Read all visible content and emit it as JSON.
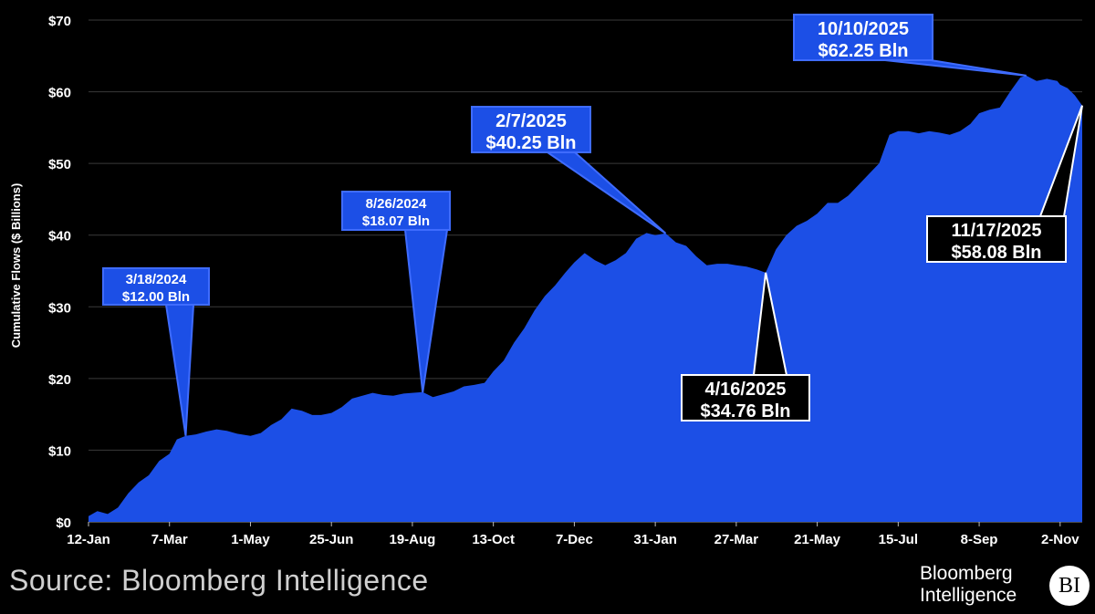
{
  "source": "Source: Bloomberg Intelligence",
  "logo": {
    "line1": "Bloomberg",
    "line2": "Intelligence",
    "badge": "BI"
  },
  "colors": {
    "area": "#1c4fe6",
    "background": "#000000",
    "grid": "#3a3a3a"
  },
  "chart_data": {
    "type": "area",
    "xlabel": "",
    "ylabel": "Cumulative Flows ($ Billions)",
    "ylim": [
      0,
      70
    ],
    "yticks": [
      0,
      10,
      20,
      30,
      40,
      50,
      60,
      70
    ],
    "ytick_labels": [
      "$0",
      "$10",
      "$20",
      "$30",
      "$40",
      "$50",
      "$60",
      "$70"
    ],
    "xlim": [
      "2024-01-12",
      "2025-11-17"
    ],
    "xticks": [
      "2024-01-12",
      "2024-03-07",
      "2024-05-01",
      "2024-06-25",
      "2024-08-19",
      "2024-10-13",
      "2024-12-07",
      "2025-01-31",
      "2025-03-27",
      "2025-05-21",
      "2025-07-15",
      "2025-09-08",
      "2025-11-02"
    ],
    "xtick_labels": [
      "12-Jan",
      "7-Mar",
      "1-May",
      "25-Jun",
      "19-Aug",
      "13-Oct",
      "7-Dec",
      "31-Jan",
      "27-Mar",
      "21-May",
      "15-Jul",
      "8-Sep",
      "2-Nov"
    ],
    "grid": true,
    "series": [
      {
        "x": [
          "2024-01-12",
          "2024-01-18",
          "2024-01-25",
          "2024-02-01",
          "2024-02-08",
          "2024-02-15",
          "2024-02-22",
          "2024-02-29",
          "2024-03-07",
          "2024-03-12",
          "2024-03-18",
          "2024-03-25",
          "2024-04-01",
          "2024-04-08",
          "2024-04-15",
          "2024-04-22",
          "2024-05-01",
          "2024-05-08",
          "2024-05-15",
          "2024-05-22",
          "2024-05-29",
          "2024-06-05",
          "2024-06-12",
          "2024-06-18",
          "2024-06-25",
          "2024-07-02",
          "2024-07-09",
          "2024-07-16",
          "2024-07-23",
          "2024-07-30",
          "2024-08-06",
          "2024-08-13",
          "2024-08-19",
          "2024-08-26",
          "2024-09-02",
          "2024-09-09",
          "2024-09-16",
          "2024-09-23",
          "2024-09-30",
          "2024-10-07",
          "2024-10-13",
          "2024-10-20",
          "2024-10-27",
          "2024-11-03",
          "2024-11-10",
          "2024-11-17",
          "2024-11-24",
          "2024-12-01",
          "2024-12-07",
          "2024-12-14",
          "2024-12-21",
          "2024-12-28",
          "2025-01-04",
          "2025-01-11",
          "2025-01-18",
          "2025-01-25",
          "2025-01-31",
          "2025-02-07",
          "2025-02-14",
          "2025-02-21",
          "2025-02-28",
          "2025-03-07",
          "2025-03-14",
          "2025-03-21",
          "2025-03-27",
          "2025-04-03",
          "2025-04-10",
          "2025-04-16",
          "2025-04-23",
          "2025-04-30",
          "2025-05-07",
          "2025-05-14",
          "2025-05-21",
          "2025-05-28",
          "2025-06-04",
          "2025-06-11",
          "2025-06-18",
          "2025-06-25",
          "2025-07-02",
          "2025-07-09",
          "2025-07-15",
          "2025-07-22",
          "2025-07-29",
          "2025-08-05",
          "2025-08-12",
          "2025-08-19",
          "2025-08-26",
          "2025-09-02",
          "2025-09-08",
          "2025-09-15",
          "2025-09-22",
          "2025-09-29",
          "2025-10-06",
          "2025-10-10",
          "2025-10-17",
          "2025-10-24",
          "2025-10-31",
          "2025-11-02",
          "2025-11-07",
          "2025-11-12",
          "2025-11-17"
        ],
        "values": [
          0.8,
          1.5,
          1.1,
          2.0,
          4.0,
          5.5,
          6.5,
          8.5,
          9.5,
          11.5,
          12.0,
          12.2,
          12.6,
          12.9,
          12.7,
          12.3,
          12.0,
          12.4,
          13.5,
          14.3,
          15.8,
          15.5,
          14.9,
          14.9,
          15.2,
          16.0,
          17.2,
          17.6,
          18.0,
          17.7,
          17.6,
          17.9,
          18.0,
          18.1,
          17.4,
          17.8,
          18.2,
          18.9,
          19.1,
          19.4,
          21.0,
          22.5,
          25.0,
          27.0,
          29.5,
          31.5,
          33.0,
          34.8,
          36.2,
          37.5,
          36.5,
          35.8,
          36.5,
          37.5,
          39.5,
          40.3,
          40.0,
          40.25,
          39.0,
          38.5,
          37.0,
          35.8,
          36.0,
          36.0,
          35.8,
          35.6,
          35.2,
          34.76,
          38.0,
          40.0,
          41.3,
          42.0,
          43.0,
          44.5,
          44.5,
          45.5,
          47.0,
          48.5,
          50.0,
          54.0,
          54.5,
          54.5,
          54.2,
          54.5,
          54.3,
          54.0,
          54.5,
          55.5,
          57.0,
          57.5,
          57.8,
          60.0,
          62.0,
          62.25,
          61.5,
          61.8,
          61.5,
          61.0,
          60.5,
          59.5,
          58.08
        ]
      }
    ],
    "annotations": [
      {
        "date": "2024-03-18",
        "line1": "3/18/2024",
        "line2": "$12.00 Bln",
        "value": 12.0,
        "style": "blue"
      },
      {
        "date": "2024-08-26",
        "line1": "8/26/2024",
        "line2": "$18.07 Bln",
        "value": 18.07,
        "style": "blue"
      },
      {
        "date": "2025-02-07",
        "line1": "2/7/2025",
        "line2": "$40.25 Bln",
        "value": 40.25,
        "style": "blue"
      },
      {
        "date": "2025-04-16",
        "line1": "4/16/2025",
        "line2": "$34.76 Bln",
        "value": 34.76,
        "style": "black"
      },
      {
        "date": "2025-10-10",
        "line1": "10/10/2025",
        "line2": "$62.25 Bln",
        "value": 62.25,
        "style": "blue"
      },
      {
        "date": "2025-11-17",
        "line1": "11/17/2025",
        "line2": "$58.08 Bln",
        "value": 58.08,
        "style": "black"
      }
    ]
  }
}
